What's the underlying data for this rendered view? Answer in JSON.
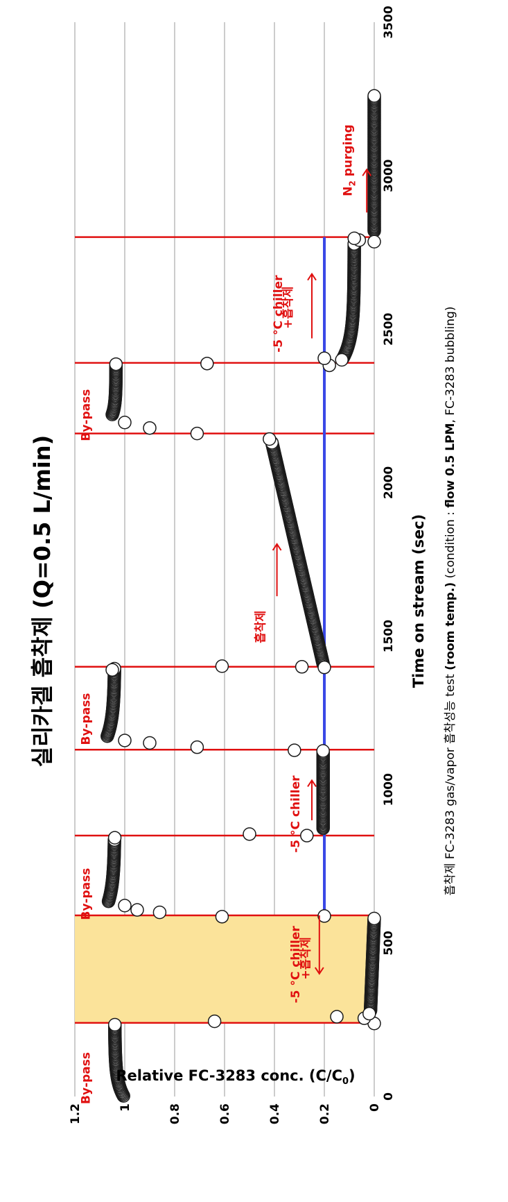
{
  "chart_data": {
    "type": "scatter",
    "title": "실리카겔 흡착제 (Q=0.5 L/min)",
    "xlabel": "Time on stream (sec)",
    "ylabel": "Relative FC-3283 conc. (C/C",
    "ylabel_sub": "0",
    "ylabel_end": ")",
    "condition": {
      "p1": "흡착제",
      "p2": " FC-3283 gas/vapor ",
      "p3": "흡착성능",
      "p4": " test ",
      "p5": "(room temp.)",
      "p6": " (condition : ",
      "p7": "flow 0.5 LPM",
      "p8": ", FC-3283 bubbling)"
    },
    "xlim": [
      0,
      3500
    ],
    "ylim": [
      0,
      1.2
    ],
    "xticks": [
      "0",
      "500",
      "1000",
      "1500",
      "2000",
      "2500",
      "3000",
      "3500"
    ],
    "yticks": [
      "0",
      "0.2",
      "0.4",
      "0.6",
      "0.8",
      "1",
      "1.2"
    ],
    "grid": "horizontal",
    "colors": {
      "points_fill": "#ffffff",
      "points_stroke": "#1a1a1a",
      "vlines": "#e01010",
      "refline": "#3a48e6",
      "highlight": "#fbe39a",
      "annotation": "#e01010"
    },
    "highlight_region": [
      240,
      590
    ],
    "reference_line": {
      "y": 0.2,
      "x_range": [
        590,
        2800
      ]
    },
    "vertical_lines": [
      240,
      590,
      850,
      1130,
      1400,
      2160,
      2390,
      2800
    ],
    "annotations": [
      {
        "id": "bypass-1",
        "text": "By-pass",
        "x": 60,
        "y": 1.14
      },
      {
        "id": "chiller-1a",
        "text": "-5 °C chiller",
        "x": 430,
        "y": 0.3
      },
      {
        "id": "chiller-1b",
        "text": "+흡착제",
        "x": 450,
        "y": 0.26
      },
      {
        "id": "bypass-2",
        "text": "By-pass",
        "x": 660,
        "y": 1.14
      },
      {
        "id": "chiller-2",
        "text": "-5 °C chiller",
        "x": 920,
        "y": 0.3
      },
      {
        "id": "bypass-3",
        "text": "By-pass",
        "x": 1230,
        "y": 1.14
      },
      {
        "id": "adsorbent-3",
        "text": "흡착제",
        "x": 1530,
        "y": 0.44
      },
      {
        "id": "bypass-4",
        "text": "By-pass",
        "x": 2220,
        "y": 1.14
      },
      {
        "id": "chiller-4a",
        "text": "-5 °C chiller",
        "x": 2550,
        "y": 0.37
      },
      {
        "id": "chiller-4b",
        "text": "+흡착제",
        "x": 2570,
        "y": 0.33
      },
      {
        "id": "n2-purging",
        "text": "N",
        "sub": "2",
        "tail": " purging",
        "x": 3050,
        "y": 0.09
      }
    ],
    "arrows": [
      {
        "x1": 590,
        "x2": 400,
        "y": 0.22
      },
      {
        "x1": 900,
        "x2": 1030,
        "y": 0.25
      },
      {
        "x1": 1630,
        "x2": 1800,
        "y": 0.39
      },
      {
        "x1": 2470,
        "x2": 2680,
        "y": 0.25
      },
      {
        "x1": 2880,
        "x2": 3020,
        "y": 0.03
      }
    ],
    "series": [
      {
        "segments": [
          {
            "x0": 2,
            "x1": 236,
            "y0": 1.005,
            "y1": 1.04,
            "shape": "exp",
            "k": 0.02
          },
          {
            "x0": 280,
            "x1": 582,
            "y0": 0.015,
            "y1": 0.0,
            "shape": "lin"
          },
          {
            "x0": 636,
            "x1": 838,
            "y0": 1.065,
            "y1": 1.04,
            "shape": "exp",
            "k": 0.015
          },
          {
            "x0": 874,
            "x1": 1128,
            "y0": 0.205,
            "y1": 0.205,
            "shape": "lin"
          },
          {
            "x0": 1174,
            "x1": 1396,
            "y0": 1.07,
            "y1": 1.04,
            "shape": "exp",
            "k": 0.015
          },
          {
            "x0": 1410,
            "x1": 2130,
            "y0": 0.205,
            "y1": 0.41,
            "shape": "lin"
          },
          {
            "x0": 2222,
            "x1": 2388,
            "y0": 1.05,
            "y1": 1.035,
            "shape": "exp",
            "k": 0.03
          },
          {
            "x0": 2406,
            "x1": 2780,
            "y0": 0.125,
            "y1": 0.08,
            "shape": "exp",
            "k": 0.015
          },
          {
            "x0": 2820,
            "x1": 3262,
            "y0": 0.0,
            "y1": 0.0,
            "shape": "lin"
          }
        ],
        "points": [
          [
            238,
            0.0
          ],
          [
            255,
            0.04
          ],
          [
            270,
            0.02
          ],
          [
            260,
            0.15
          ],
          [
            245,
            0.64
          ],
          [
            588,
            0.2
          ],
          [
            586,
            0.61
          ],
          [
            600,
            0.86
          ],
          [
            608,
            0.95
          ],
          [
            622,
            1.0
          ],
          [
            850,
            0.27
          ],
          [
            855,
            0.5
          ],
          [
            843,
            1.04
          ],
          [
            1128,
            0.32
          ],
          [
            1138,
            0.71
          ],
          [
            1152,
            0.9
          ],
          [
            1160,
            1.0
          ],
          [
            1398,
            0.2
          ],
          [
            1400,
            0.29
          ],
          [
            1402,
            0.61
          ],
          [
            1390,
            1.05
          ],
          [
            2142,
            0.42
          ],
          [
            2160,
            0.71
          ],
          [
            2178,
            0.9
          ],
          [
            2196,
            1.0
          ],
          [
            2382,
            0.18
          ],
          [
            2388,
            0.67
          ],
          [
            2405,
            0.2
          ],
          [
            2400,
            0.13
          ],
          [
            2785,
            0.0
          ],
          [
            2790,
            0.06
          ],
          [
            2796,
            0.08
          ]
        ]
      }
    ]
  }
}
